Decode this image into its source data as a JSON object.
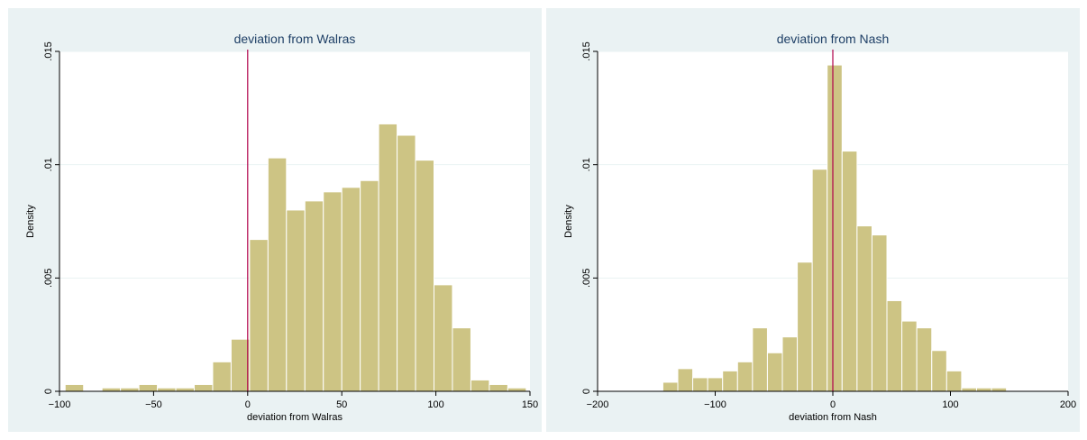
{
  "chart_data": [
    {
      "type": "bar",
      "title": "deviation from Walras",
      "xlabel": "deviation from Walras",
      "ylabel": "Density",
      "xlim": [
        -100,
        150
      ],
      "ylim": [
        0,
        0.015
      ],
      "xticks": [
        -100,
        -50,
        0,
        50,
        100,
        150
      ],
      "xtick_labels": [
        "−100",
        "−50",
        "0",
        "50",
        "100",
        "150"
      ],
      "yticks": [
        0,
        0.005,
        0.01,
        0.015
      ],
      "ytick_labels": [
        "0",
        ".005",
        ".01",
        ".015"
      ],
      "grid": true,
      "reference_line_x": 0,
      "bin_width": 9.8,
      "bins": [
        {
          "x0": -97.0,
          "density": 0.0003
        },
        {
          "x0": -87.2,
          "density": 0.0
        },
        {
          "x0": -77.4,
          "density": 0.00015
        },
        {
          "x0": -67.6,
          "density": 0.00015
        },
        {
          "x0": -57.8,
          "density": 0.0003
        },
        {
          "x0": -48.0,
          "density": 0.00015
        },
        {
          "x0": -38.2,
          "density": 0.00015
        },
        {
          "x0": -28.4,
          "density": 0.0003
        },
        {
          "x0": -18.6,
          "density": 0.0013
        },
        {
          "x0": -8.8,
          "density": 0.0023
        },
        {
          "x0": 1.0,
          "density": 0.0067
        },
        {
          "x0": 10.8,
          "density": 0.0103
        },
        {
          "x0": 20.6,
          "density": 0.008
        },
        {
          "x0": 30.4,
          "density": 0.0084
        },
        {
          "x0": 40.2,
          "density": 0.0088
        },
        {
          "x0": 50.0,
          "density": 0.009
        },
        {
          "x0": 59.8,
          "density": 0.0093
        },
        {
          "x0": 69.6,
          "density": 0.0118
        },
        {
          "x0": 79.4,
          "density": 0.0113
        },
        {
          "x0": 89.2,
          "density": 0.0102
        },
        {
          "x0": 99.0,
          "density": 0.0047
        },
        {
          "x0": 108.8,
          "density": 0.0028
        },
        {
          "x0": 118.6,
          "density": 0.0005
        },
        {
          "x0": 128.4,
          "density": 0.0003
        },
        {
          "x0": 138.2,
          "density": 0.00015
        }
      ]
    },
    {
      "type": "bar",
      "title": "deviation from Nash",
      "xlabel": "deviation from Nash",
      "ylabel": "Density",
      "xlim": [
        -200,
        200
      ],
      "ylim": [
        0,
        0.015
      ],
      "xticks": [
        -200,
        -100,
        0,
        100,
        200
      ],
      "xtick_labels": [
        "−200",
        "−100",
        "0",
        "100",
        "200"
      ],
      "yticks": [
        0,
        0.005,
        0.01,
        0.015
      ],
      "ytick_labels": [
        "0",
        ".005",
        ".01",
        ".015"
      ],
      "grid": true,
      "reference_line_x": 0,
      "bin_width": 12.7,
      "bins": [
        {
          "x0": -144.5,
          "density": 0.0004
        },
        {
          "x0": -131.8,
          "density": 0.001
        },
        {
          "x0": -119.1,
          "density": 0.0006
        },
        {
          "x0": -106.4,
          "density": 0.0006
        },
        {
          "x0": -93.7,
          "density": 0.0009
        },
        {
          "x0": -81.0,
          "density": 0.0013
        },
        {
          "x0": -68.3,
          "density": 0.0028
        },
        {
          "x0": -55.6,
          "density": 0.0017
        },
        {
          "x0": -42.9,
          "density": 0.0024
        },
        {
          "x0": -30.2,
          "density": 0.0057
        },
        {
          "x0": -17.5,
          "density": 0.0098
        },
        {
          "x0": -4.8,
          "density": 0.0144
        },
        {
          "x0": 7.9,
          "density": 0.0106
        },
        {
          "x0": 20.6,
          "density": 0.0073
        },
        {
          "x0": 33.3,
          "density": 0.0069
        },
        {
          "x0": 46.0,
          "density": 0.004
        },
        {
          "x0": 58.7,
          "density": 0.0031
        },
        {
          "x0": 71.4,
          "density": 0.0028
        },
        {
          "x0": 84.1,
          "density": 0.0018
        },
        {
          "x0": 96.8,
          "density": 0.0009
        },
        {
          "x0": 109.5,
          "density": 0.00015
        },
        {
          "x0": 122.2,
          "density": 0.00015
        },
        {
          "x0": 134.9,
          "density": 0.00015
        }
      ]
    }
  ],
  "colors": {
    "outer_background": "#eaf2f3",
    "plot_background": "#ffffff",
    "bar_fill": "#cdc484",
    "bar_stroke": "#ffffff",
    "grid": "#eaf2f3",
    "axis": "#000000",
    "reference_line": "#b0004a",
    "title": "#1e3f66"
  }
}
